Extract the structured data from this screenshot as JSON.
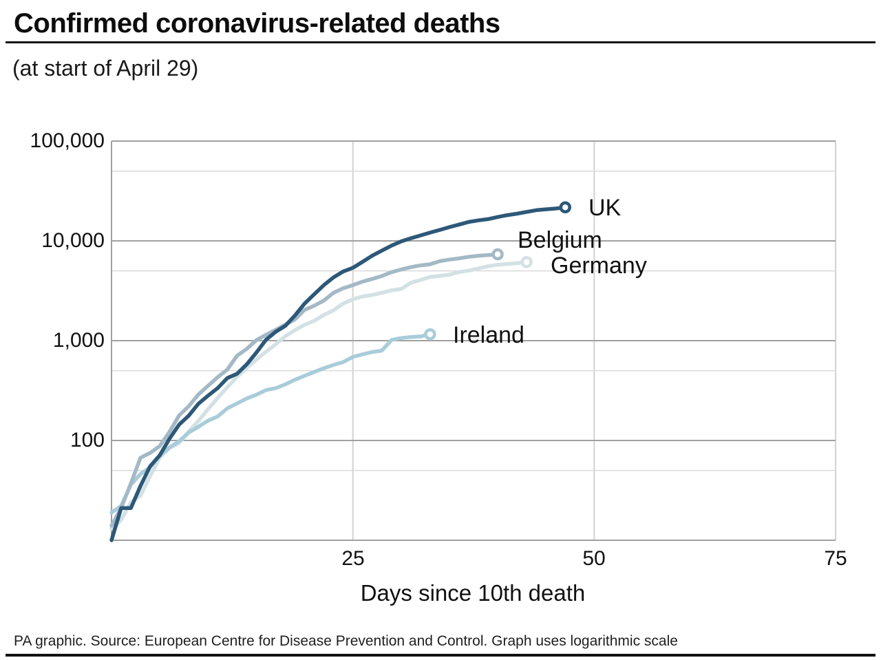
{
  "chart_data": {
    "type": "line",
    "title": "Confirmed coronavirus-related deaths",
    "subtitle": "(at start of April 29)",
    "xlabel": "Days since 10th death",
    "footnote": "PA graphic. Source: European Centre for Disease Prevention and Control. Graph uses logarithmic scale",
    "y_scale": "log",
    "xlim": [
      0,
      75
    ],
    "ylim": [
      10,
      100000
    ],
    "grid": "on",
    "legend_position": "end-of-line labels",
    "x_ticks": [
      {
        "label": "25",
        "value": 25
      },
      {
        "label": "50",
        "value": 50
      },
      {
        "label": "75",
        "value": 75
      }
    ],
    "y_ticks": [
      {
        "label": "100,000",
        "value": 100000
      },
      {
        "label": "10,000",
        "value": 10000
      },
      {
        "label": "1,000",
        "value": 1000
      },
      {
        "label": "100",
        "value": 100
      }
    ],
    "minor_y_gridlines": [
      50000,
      5000,
      500,
      50
    ],
    "series": [
      {
        "name": "Germany",
        "color": "#d3e1e4",
        "values": [
          13,
          16,
          24,
          28,
          44,
          67,
          84,
          94,
          123,
          157,
          206,
          267,
          342,
          433,
          533,
          645,
          775,
          920,
          1107,
          1275,
          1444,
          1584,
          1810,
          2016,
          2349,
          2607,
          2767,
          2871,
          3022,
          3194,
          3294,
          3804,
          4052,
          4352,
          4459,
          4586,
          4862,
          5033,
          5279,
          5575,
          5760,
          5877,
          5976,
          6126
        ]
      },
      {
        "name": "Ireland",
        "color": "#a9ccd9",
        "values": [
          19,
          22,
          36,
          46,
          54,
          71,
          85,
          98,
          120,
          137,
          158,
          174,
          210,
          235,
          263,
          287,
          320,
          334,
          365,
          406,
          444,
          486,
          530,
          571,
          610,
          687,
          730,
          769,
          794,
          1014,
          1063,
          1087,
          1102,
          1159
        ]
      },
      {
        "name": "Belgium",
        "color": "#a4b9c6",
        "values": [
          14,
          21,
          37,
          67,
          75,
          88,
          122,
          178,
          220,
          289,
          353,
          431,
          513,
          705,
          828,
          1011,
          1143,
          1283,
          1447,
          1632,
          2035,
          2240,
          2523,
          3019,
          3346,
          3600,
          3903,
          4157,
          4440,
          4857,
          5163,
          5453,
          5683,
          5828,
          6262,
          6490,
          6679,
          6917,
          7094,
          7207,
          7331
        ]
      },
      {
        "name": "UK",
        "color": "#2d5878",
        "values": [
          10,
          21,
          21,
          35,
          55,
          71,
          104,
          144,
          177,
          233,
          281,
          335,
          422,
          465,
          578,
          759,
          1019,
          1228,
          1408,
          1789,
          2352,
          2921,
          3605,
          4313,
          4934,
          5373,
          6159,
          7097,
          7978,
          8958,
          9875,
          10612,
          11329,
          12107,
          12868,
          13729,
          14576,
          15464,
          16060,
          16509,
          17337,
          18100,
          18738,
          19506,
          20319,
          20732,
          21092,
          21678
        ]
      }
    ]
  }
}
